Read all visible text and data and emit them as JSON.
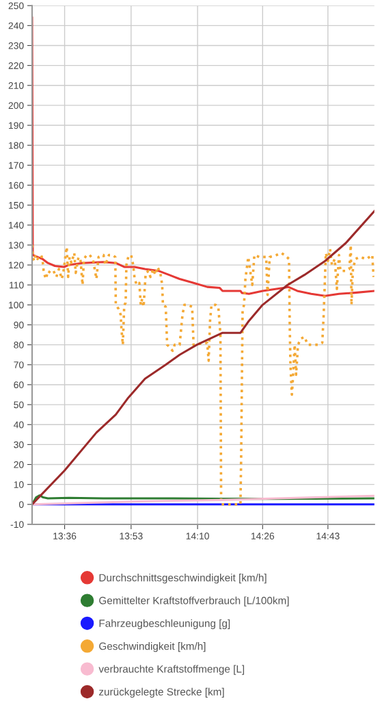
{
  "chart_data": {
    "type": "line",
    "xlim": [
      13.462,
      14.914
    ],
    "xticks": [
      {
        "value": 13.6,
        "label": "13:36"
      },
      {
        "value": 13.882,
        "label": "13:53"
      },
      {
        "value": 14.164,
        "label": "14:10"
      },
      {
        "value": 14.44,
        "label": "14:26"
      },
      {
        "value": 14.717,
        "label": "14:43"
      }
    ],
    "ylim": [
      -10,
      250
    ],
    "yticks": [
      -10,
      0,
      10,
      20,
      30,
      40,
      50,
      60,
      70,
      80,
      90,
      100,
      110,
      120,
      130,
      140,
      150,
      160,
      170,
      180,
      190,
      200,
      210,
      220,
      230,
      240,
      250
    ],
    "grid": true,
    "legend": "bottom",
    "marker": "none",
    "series": [
      {
        "name": "Durchschnittsgeschwindigkeit [km/h]",
        "color": "#e53935",
        "line_style": "solid",
        "x": [
          13.462,
          13.465,
          13.485,
          13.506,
          13.529,
          13.559,
          13.597,
          13.618,
          13.676,
          13.765,
          13.817,
          13.853,
          13.897,
          13.941,
          14.0,
          14.044,
          14.088,
          14.147,
          14.205,
          14.258,
          14.27,
          14.346,
          14.352,
          14.382,
          14.44,
          14.529,
          14.549,
          14.587,
          14.646,
          14.705,
          14.764,
          14.823,
          14.914
        ],
        "values": [
          244,
          125,
          124,
          123,
          121,
          119.5,
          119,
          120,
          121,
          121.5,
          121,
          119,
          119,
          118,
          117,
          115,
          113,
          111,
          109,
          108.5,
          107,
          107,
          106,
          105.5,
          107,
          108.5,
          109,
          107,
          105.5,
          104.5,
          105.5,
          106,
          107
        ]
      },
      {
        "name": "Gemittelter Kraftstoffverbrauch [L/100km]",
        "color": "#2e7d32",
        "line_style": "solid",
        "x": [
          13.462,
          13.479,
          13.494,
          13.509,
          13.529,
          13.618,
          13.765,
          14.058,
          14.264,
          14.346,
          14.499,
          14.914
        ],
        "values": [
          0,
          3.5,
          4.5,
          3.5,
          3,
          3.3,
          3,
          3,
          2.8,
          2.8,
          2.8,
          3
        ]
      },
      {
        "name": "Fahrzeugbeschleunigung [g]",
        "color": "#1a1aff",
        "line_style": "solid",
        "x": [
          13.462,
          13.914,
          14.264,
          14.914
        ],
        "values": [
          0,
          0,
          0,
          0
        ]
      },
      {
        "name": "Geschwindigkeit [km/h]",
        "color": "#f4a935",
        "line_style": "dotted",
        "x": [
          13.462,
          13.465,
          13.471,
          13.477,
          13.485,
          13.5,
          13.506,
          13.512,
          13.521,
          13.529,
          13.541,
          13.553,
          13.565,
          13.576,
          13.588,
          13.597,
          13.603,
          13.609,
          13.615,
          13.621,
          13.629,
          13.641,
          13.647,
          13.659,
          13.668,
          13.676,
          13.682,
          13.694,
          13.706,
          13.72,
          13.735,
          13.744,
          13.765,
          13.773,
          13.788,
          13.803,
          13.815,
          13.817,
          13.829,
          13.838,
          13.841,
          13.847,
          13.853,
          13.859,
          13.862,
          13.87,
          13.882,
          13.891,
          13.897,
          13.906,
          13.917,
          13.923,
          13.929,
          13.935,
          13.944,
          13.956,
          13.964,
          13.976,
          13.985,
          13.994,
          14.006,
          14.014,
          14.017,
          14.029,
          14.035,
          14.044,
          14.058,
          14.067,
          14.088,
          14.1,
          14.108,
          14.123,
          14.141,
          14.147,
          14.205,
          14.211,
          14.217,
          14.223,
          14.241,
          14.252,
          14.258,
          14.261,
          14.264,
          14.346,
          14.349,
          14.355,
          14.361,
          14.367,
          14.379,
          14.396,
          14.405,
          14.426,
          14.455,
          14.461,
          14.47,
          14.499,
          14.52,
          14.543,
          14.552,
          14.555,
          14.558,
          14.564,
          14.567,
          14.576,
          14.582,
          14.59,
          14.602,
          14.617,
          14.632,
          14.676,
          14.693,
          14.699,
          14.705,
          14.708,
          14.717,
          14.726,
          14.734,
          14.746,
          14.755,
          14.764,
          14.77,
          14.793,
          14.808,
          14.814,
          14.817,
          14.823,
          14.834,
          14.852,
          14.881,
          14.905,
          14.911
        ],
        "values": [
          130,
          124,
          122,
          125,
          123,
          125,
          123,
          116,
          113,
          117,
          116,
          117,
          114,
          118,
          113,
          118,
          124,
          129,
          114,
          124,
          121,
          126,
          116,
          124,
          122,
          110,
          123,
          125,
          125,
          123,
          113,
          124,
          125,
          120,
          125,
          125,
          124,
          100,
          98,
          95,
          88,
          80,
          100,
          101,
          120,
          124,
          125,
          120,
          113,
          110,
          111,
          100,
          103,
          99,
          116,
          117,
          114,
          118,
          115,
          119,
          116,
          110,
          100,
          99,
          80,
          79,
          77,
          80,
          80,
          95,
          100,
          100,
          99,
          80,
          81,
          72,
          92,
          100,
          100,
          99,
          90,
          85,
          0,
          0,
          25,
          97,
          100,
          113,
          124,
          110,
          125,
          124,
          124,
          105,
          124,
          125,
          126,
          124,
          123,
          90,
          70,
          55,
          60,
          80,
          65,
          80,
          83,
          84,
          80,
          80,
          81,
          95,
          115,
          126,
          122,
          128,
          120,
          123,
          108,
          125,
          117,
          117,
          118,
          130,
          100,
          118,
          123,
          124,
          123,
          125,
          114
        ]
      },
      {
        "name": "verbrauchte Kraftstoffmenge [L]",
        "color": "#f8bbd0",
        "line_style": "solid",
        "x": [
          13.462,
          13.911,
          14.264,
          14.499,
          14.914
        ],
        "values": [
          0,
          1.5,
          2.2,
          3,
          4.3
        ]
      },
      {
        "name": "zurückgelegte Strecke [km]",
        "color": "#9c2a2a",
        "line_style": "solid",
        "x": [
          13.462,
          13.6,
          13.735,
          13.817,
          13.867,
          13.941,
          14.029,
          14.088,
          14.161,
          14.27,
          14.346,
          14.382,
          14.44,
          14.546,
          14.617,
          14.705,
          14.793,
          14.914
        ],
        "values": [
          0,
          17,
          36,
          45,
          53,
          63,
          70,
          75,
          80,
          86,
          86,
          92,
          100,
          110,
          115,
          122,
          131,
          147
        ]
      }
    ]
  }
}
